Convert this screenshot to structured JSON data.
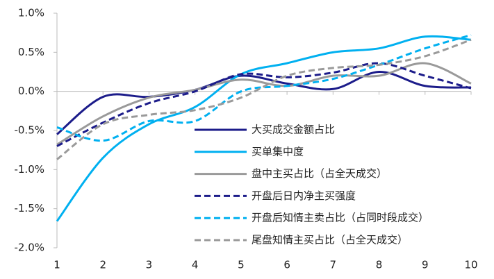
{
  "chart_data": {
    "type": "line",
    "x": [
      1,
      2,
      3,
      4,
      5,
      6,
      7,
      8,
      9,
      10
    ],
    "xlim": [
      1,
      10
    ],
    "xticks": [
      1,
      2,
      3,
      4,
      5,
      6,
      7,
      8,
      9,
      10
    ],
    "ylim": [
      -2.0,
      1.0
    ],
    "yticks": [
      {
        "value": 1.0,
        "label": "1.0%"
      },
      {
        "value": 0.5,
        "label": "0.5%"
      },
      {
        "value": 0.0,
        "label": "0.0%"
      },
      {
        "value": -0.5,
        "label": "-0.5%"
      },
      {
        "value": -1.0,
        "label": "-1.0%"
      },
      {
        "value": -1.5,
        "label": "-1.5%"
      },
      {
        "value": -2.0,
        "label": "-2.0%"
      }
    ],
    "series": [
      {
        "name": "大买成交金额占比",
        "color": "#1c1c8a",
        "dashed": false,
        "values": [
          -0.55,
          -0.07,
          -0.07,
          0.02,
          0.2,
          0.1,
          0.03,
          0.25,
          0.07,
          0.05
        ]
      },
      {
        "name": "买单集中度",
        "color": "#00b0f0",
        "dashed": false,
        "values": [
          -1.66,
          -0.85,
          -0.42,
          -0.2,
          0.22,
          0.36,
          0.5,
          0.55,
          0.7,
          0.66
        ]
      },
      {
        "name": "盘中主买占比（占全天成交）",
        "color": "#9a9a9a",
        "dashed": false,
        "values": [
          -0.68,
          -0.32,
          -0.08,
          0.02,
          0.15,
          0.07,
          0.2,
          0.2,
          0.36,
          0.1
        ]
      },
      {
        "name": "开盘后日内净主买强度",
        "color": "#1c1c8a",
        "dashed": true,
        "values": [
          -0.7,
          -0.4,
          -0.15,
          0.0,
          0.22,
          0.18,
          0.24,
          0.36,
          0.2,
          0.04
        ]
      },
      {
        "name": "开盘后知情主卖占比（占同时段成交）",
        "color": "#00b0f0",
        "dashed": true,
        "values": [
          -0.46,
          -0.63,
          -0.38,
          -0.38,
          0.0,
          0.07,
          0.16,
          0.34,
          0.55,
          0.72
        ]
      },
      {
        "name": "尾盘知情主买占比（占全天成交）",
        "color": "#9a9a9a",
        "dashed": true,
        "values": [
          -0.87,
          -0.42,
          -0.3,
          -0.24,
          -0.08,
          0.2,
          0.3,
          0.34,
          0.45,
          0.66
        ]
      }
    ]
  }
}
